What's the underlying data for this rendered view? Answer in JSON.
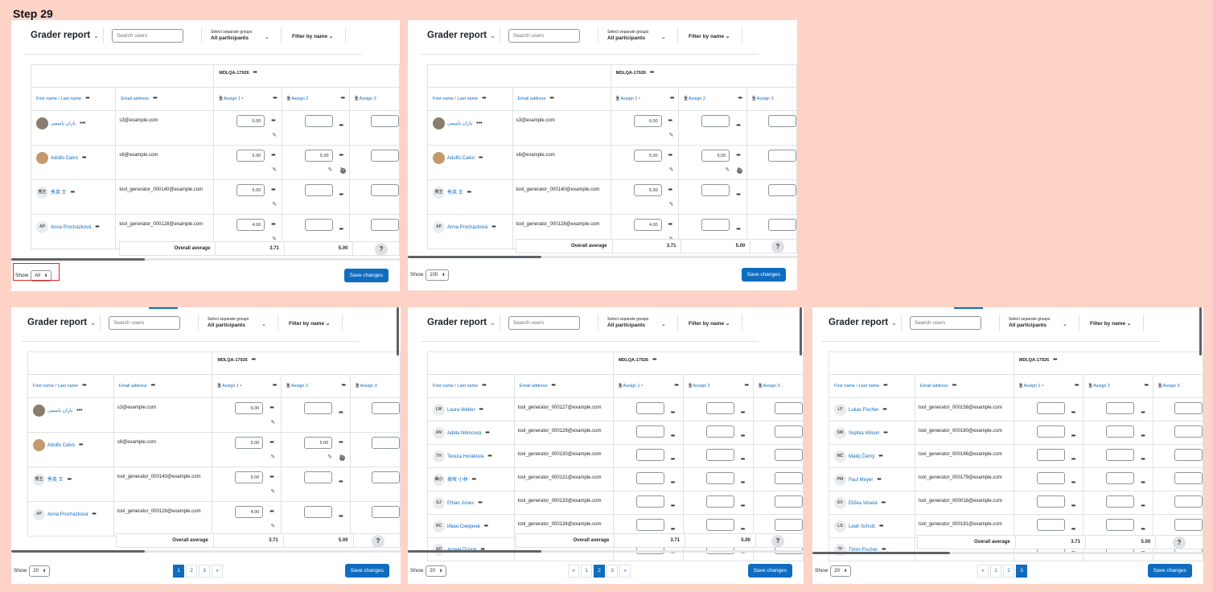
{
  "step_label": "Step 29",
  "panels": [
    {
      "title": "Grader report",
      "search_placeholder": "Search users",
      "groups_label": "Select separate groups",
      "groups_value": "All participants",
      "filter_label": "Filter by name",
      "activity": "MDLQA-17926",
      "col_name": "First name / Last name",
      "col_email": "Email address",
      "col_a1": "Assign 1",
      "col_a2": "Assign 2",
      "col_a3": "Assign 3",
      "rows": [
        {
          "avatar": "",
          "name": "یاران یاسمی",
          "email": "s3@example.com",
          "a1": "6.00",
          "a2": ""
        },
        {
          "avatar": "",
          "name": "Adolfo Calvo",
          "email": "s6@example.com",
          "a1": "5.00",
          "a2": "5.00"
        },
        {
          "avatar": "秀王",
          "name": "秀英 王",
          "email": "tool_generator_000140@example.com",
          "a1": "5.00",
          "a2": ""
        },
        {
          "avatar": "AP",
          "name": "Anna Procházková",
          "email": "tool_generator_000128@example.com",
          "a1": "4.00",
          "a2": ""
        }
      ],
      "avg_label": "Overall average",
      "avg_a1": "3.71",
      "avg_a2": "5.00",
      "show_label": "Show",
      "show_value": "All",
      "save_label": "Save changes"
    },
    {
      "title": "Grader report",
      "search_placeholder": "Search users",
      "groups_label": "Select separate groups",
      "groups_value": "All participants",
      "filter_label": "Filter by name",
      "activity": "MDLQA-17926",
      "col_name": "First name / Last name",
      "col_email": "Email address",
      "col_a1": "Assign 1",
      "col_a2": "Assign 2",
      "col_a3": "Assign 3",
      "rows": [
        {
          "avatar": "",
          "name": "یاران یاسمی",
          "email": "s3@example.com",
          "a1": "6.00",
          "a2": ""
        },
        {
          "avatar": "",
          "name": "Adolfo Calvo",
          "email": "s6@example.com",
          "a1": "5.00",
          "a2": "5.00"
        },
        {
          "avatar": "秀王",
          "name": "秀英 王",
          "email": "tool_generator_000140@example.com",
          "a1": "5.00",
          "a2": ""
        },
        {
          "avatar": "AP",
          "name": "Anna Procházková",
          "email": "tool_generator_000128@example.com",
          "a1": "4.00",
          "a2": ""
        }
      ],
      "avg_label": "Overall average",
      "avg_a1": "3.71",
      "avg_a2": "5.00",
      "show_label": "Show",
      "show_value": "100",
      "save_label": "Save changes"
    },
    {
      "title": "Grader report",
      "search_placeholder": "Search users",
      "groups_label": "Select separate groups",
      "groups_value": "All participants",
      "filter_label": "Filter by name",
      "activity": "MDLQA-17926",
      "col_name": "First name / Last name",
      "col_email": "Email address",
      "col_a1": "Assign 1",
      "col_a2": "Assign 2",
      "col_a3": "Assign 3",
      "rows": [
        {
          "avatar": "",
          "name": "یاران یاسمی",
          "email": "s3@example.com",
          "a1": "6.00",
          "a2": ""
        },
        {
          "avatar": "",
          "name": "Adolfo Calvo",
          "email": "s6@example.com",
          "a1": "5.00",
          "a2": "5.00"
        },
        {
          "avatar": "秀王",
          "name": "秀英 王",
          "email": "tool_generator_000140@example.com",
          "a1": "5.00",
          "a2": ""
        },
        {
          "avatar": "AP",
          "name": "Anna Procházková",
          "email": "tool_generator_000128@example.com",
          "a1": "4.00",
          "a2": ""
        }
      ],
      "avg_label": "Overall average",
      "avg_a1": "3.71",
      "avg_a2": "5.00",
      "show_label": "Show",
      "show_value": "20",
      "pages": [
        "1",
        "2",
        "3",
        "»"
      ],
      "active_page": "1",
      "save_label": "Save changes"
    },
    {
      "title": "Grader report",
      "search_placeholder": "Search users",
      "groups_label": "Select separate groups",
      "groups_value": "All participants",
      "filter_label": "Filter by name",
      "activity": "MDLQA-17926",
      "col_name": "First name / Last name",
      "col_email": "Email address",
      "col_a1": "Assign 1",
      "col_a2": "Assign 2",
      "col_a3": "Assign 3",
      "rows": [
        {
          "avatar": "LW",
          "name": "Laura Weber",
          "email": "tool_generator_000127@example.com"
        },
        {
          "avatar": "AN",
          "name": "Adéla Němcová",
          "email": "tool_generator_000129@example.com"
        },
        {
          "avatar": "TH",
          "name": "Tereza Horáková",
          "email": "tool_generator_000130@example.com"
        },
        {
          "avatar": "美小",
          "name": "美咲 小林",
          "email": "tool_generator_000131@example.com"
        },
        {
          "avatar": "EJ",
          "name": "Ethan Jones",
          "email": "tool_generator_000133@example.com"
        },
        {
          "avatar": "ИС",
          "name": "Иван Смирнов",
          "email": "tool_generator_000134@example.com"
        },
        {
          "avatar": "АП",
          "name": "Артем Попов",
          "email": ""
        }
      ],
      "avg_label": "Overall average",
      "avg_a1": "3.71",
      "avg_a2": "5.00",
      "show_label": "Show",
      "show_value": "20",
      "pages": [
        "«",
        "1",
        "2",
        "3",
        "»"
      ],
      "active_page": "2",
      "save_label": "Save changes"
    },
    {
      "title": "Grader report",
      "search_placeholder": "Search users",
      "groups_label": "Select separate groups",
      "groups_value": "All participants",
      "filter_label": "Filter by name",
      "activity": "MDLQA-17926",
      "col_name": "First name / Last name",
      "col_email": "Email address",
      "col_a1": "Assign 1",
      "col_a2": "Assign 2",
      "col_a3": "Assign 3",
      "rows": [
        {
          "avatar": "LF",
          "name": "Lukas Fischer",
          "email": "tool_generator_000158@example.com"
        },
        {
          "avatar": "SW",
          "name": "Sophia Wilson",
          "email": "tool_generator_000160@example.com"
        },
        {
          "avatar": "MČ",
          "name": "Matěj Černý",
          "email": "tool_generator_000166@example.com"
        },
        {
          "avatar": "PM",
          "name": "Paul Meyer",
          "email": "tool_generator_000179@example.com"
        },
        {
          "avatar": "EV",
          "name": "Eliška Veselá",
          "email": "tool_generator_000018@example.com"
        },
        {
          "avatar": "LS",
          "name": "Leah Schulz",
          "email": "tool_generator_000181@example.com"
        },
        {
          "avatar": "TF",
          "name": "Timm Fischer",
          "email": ""
        }
      ],
      "avg_label": "Overall average",
      "avg_a1": "3.71",
      "avg_a2": "5.00",
      "show_label": "Show",
      "show_value": "20",
      "pages": [
        "«",
        "1",
        "2",
        "3"
      ],
      "active_page": "3",
      "save_label": "Save changes"
    }
  ]
}
